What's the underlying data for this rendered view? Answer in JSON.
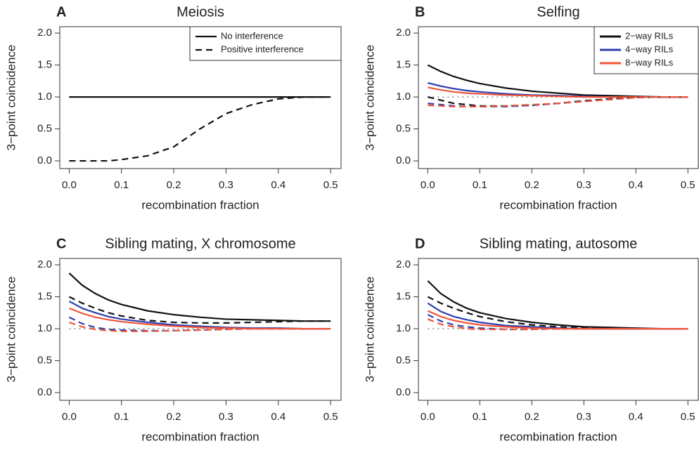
{
  "chart_data": [
    {
      "type": "line",
      "label": "A",
      "title": "Meiosis",
      "x_label": "recombination fraction",
      "y_label": "3−point coincidence",
      "x": [
        0,
        0.025,
        0.05,
        0.075,
        0.1,
        0.15,
        0.2,
        0.25,
        0.3,
        0.35,
        0.4,
        0.45,
        0.5
      ],
      "series": [
        {
          "name": "No interference",
          "color": "#111111",
          "dash": "solid",
          "values": [
            1,
            1,
            1,
            1,
            1,
            1,
            1,
            1,
            1,
            1,
            1,
            1,
            1
          ]
        },
        {
          "name": "Positive interference",
          "color": "#111111",
          "dash": "dashed",
          "values": [
            0,
            0,
            0,
            0,
            0.02,
            0.08,
            0.22,
            0.5,
            0.74,
            0.88,
            0.97,
            1,
            1
          ]
        }
      ],
      "xlim": [
        -0.018,
        0.52
      ],
      "ylim": [
        -0.12,
        2.1
      ],
      "xticks": [
        {
          "value": 0,
          "label": "0.0"
        },
        0.1,
        0.2,
        0.3,
        0.4,
        0.5
      ],
      "yticks": [
        {
          "value": 0,
          "label": "0.0"
        },
        0.5,
        {
          "value": 1,
          "label": "1.0"
        },
        1.5,
        {
          "value": 2,
          "label": "2.0"
        }
      ],
      "legend": "top-right"
    },
    {
      "type": "line",
      "label": "B",
      "title": "Selfing",
      "x_label": "recombination fraction",
      "y_label": "3−point coincidence",
      "x": [
        0,
        0.025,
        0.05,
        0.075,
        0.1,
        0.15,
        0.2,
        0.25,
        0.3,
        0.35,
        0.4,
        0.45,
        0.5
      ],
      "series": [
        {
          "name": "2−way RILs",
          "color": "#111111",
          "dash": "solid",
          "values": [
            1.5,
            1.4,
            1.32,
            1.26,
            1.21,
            1.14,
            1.09,
            1.06,
            1.03,
            1.02,
            1.01,
            1,
            1
          ]
        },
        {
          "name": "4−way RILs",
          "color": "#2b3fae",
          "dash": "solid",
          "values": [
            1.22,
            1.17,
            1.13,
            1.1,
            1.08,
            1.05,
            1.03,
            1.02,
            1.01,
            1,
            1,
            1,
            1
          ]
        },
        {
          "name": "8−way RILs",
          "color": "#f0553a",
          "dash": "solid",
          "values": [
            1.15,
            1.11,
            1.08,
            1.06,
            1.05,
            1.03,
            1.02,
            1.01,
            1,
            1,
            1,
            1,
            1
          ]
        },
        {
          "color": "#111111",
          "dash": "dashed",
          "values": [
            1,
            0.95,
            0.9,
            0.88,
            0.86,
            0.86,
            0.87,
            0.9,
            0.94,
            0.97,
            0.99,
            1,
            1
          ]
        },
        {
          "color": "#2b3fae",
          "dash": "dashed",
          "values": [
            0.9,
            0.88,
            0.86,
            0.85,
            0.85,
            0.85,
            0.87,
            0.9,
            0.93,
            0.96,
            0.99,
            1,
            1
          ]
        },
        {
          "color": "#f0553a",
          "dash": "dashed",
          "values": [
            0.87,
            0.86,
            0.85,
            0.85,
            0.85,
            0.86,
            0.88,
            0.9,
            0.93,
            0.96,
            0.99,
            1,
            1
          ]
        }
      ],
      "xlim": [
        -0.018,
        0.52
      ],
      "ylim": [
        -0.12,
        2.1
      ],
      "xticks": [
        {
          "value": 0,
          "label": "0.0"
        },
        0.1,
        0.2,
        0.3,
        0.4,
        0.5
      ],
      "yticks": [
        {
          "value": 0,
          "label": "0.0"
        },
        0.5,
        {
          "value": 1,
          "label": "1.0"
        },
        1.5,
        {
          "value": 2,
          "label": "2.0"
        }
      ],
      "legend": "top-right",
      "reference_line": 1
    },
    {
      "type": "line",
      "label": "C",
      "title": "Sibling mating, X chromosome",
      "x_label": "recombination fraction",
      "y_label": "3−point coincidence",
      "x": [
        0,
        0.025,
        0.05,
        0.075,
        0.1,
        0.15,
        0.2,
        0.25,
        0.3,
        0.35,
        0.4,
        0.45,
        0.5
      ],
      "series": [
        {
          "color": "#111111",
          "dash": "solid",
          "values": [
            1.87,
            1.68,
            1.55,
            1.45,
            1.38,
            1.28,
            1.22,
            1.18,
            1.15,
            1.14,
            1.13,
            1.12,
            1.12
          ]
        },
        {
          "color": "#111111",
          "dash": "dashed",
          "values": [
            1.5,
            1.4,
            1.32,
            1.25,
            1.2,
            1.13,
            1.1,
            1.09,
            1.09,
            1.1,
            1.11,
            1.12,
            1.12
          ]
        },
        {
          "color": "#2b3fae",
          "dash": "solid",
          "values": [
            1.43,
            1.32,
            1.25,
            1.19,
            1.15,
            1.1,
            1.06,
            1.04,
            1.02,
            1.01,
            1.01,
            1,
            1
          ]
        },
        {
          "color": "#2b3fae",
          "dash": "dashed",
          "values": [
            1.18,
            1.08,
            1.02,
            0.99,
            0.98,
            0.97,
            0.97,
            0.98,
            0.99,
            1,
            1,
            1,
            1
          ]
        },
        {
          "color": "#f0553a",
          "dash": "solid",
          "values": [
            1.32,
            1.24,
            1.18,
            1.14,
            1.11,
            1.07,
            1.04,
            1.02,
            1.01,
            1,
            1,
            1,
            1
          ]
        },
        {
          "color": "#f0553a",
          "dash": "dashed",
          "values": [
            1.1,
            1.03,
            0.99,
            0.97,
            0.96,
            0.96,
            0.97,
            0.98,
            0.99,
            1,
            1,
            1,
            1
          ]
        }
      ],
      "xlim": [
        -0.018,
        0.52
      ],
      "ylim": [
        -0.12,
        2.1
      ],
      "xticks": [
        {
          "value": 0,
          "label": "0.0"
        },
        0.1,
        0.2,
        0.3,
        0.4,
        0.5
      ],
      "yticks": [
        {
          "value": 0,
          "label": "0.0"
        },
        0.5,
        {
          "value": 1,
          "label": "1.0"
        },
        1.5,
        {
          "value": 2,
          "label": "2.0"
        }
      ],
      "reference_line": 1
    },
    {
      "type": "line",
      "label": "D",
      "title": "Sibling mating, autosome",
      "x_label": "recombination fraction",
      "y_label": "3−point coincidence",
      "x": [
        0,
        0.025,
        0.05,
        0.075,
        0.1,
        0.15,
        0.2,
        0.25,
        0.3,
        0.35,
        0.4,
        0.45,
        0.5
      ],
      "series": [
        {
          "color": "#111111",
          "dash": "solid",
          "values": [
            1.75,
            1.55,
            1.42,
            1.32,
            1.25,
            1.16,
            1.1,
            1.06,
            1.03,
            1.02,
            1.01,
            1,
            1
          ]
        },
        {
          "color": "#111111",
          "dash": "dashed",
          "values": [
            1.5,
            1.4,
            1.32,
            1.25,
            1.19,
            1.11,
            1.06,
            1.03,
            1.01,
            1,
            1,
            1,
            1
          ]
        },
        {
          "color": "#2b3fae",
          "dash": "solid",
          "values": [
            1.4,
            1.27,
            1.19,
            1.14,
            1.1,
            1.05,
            1.03,
            1.01,
            1,
            1,
            1,
            1,
            1
          ]
        },
        {
          "color": "#2b3fae",
          "dash": "dashed",
          "values": [
            1.22,
            1.12,
            1.06,
            1.03,
            1.01,
            0.99,
            0.99,
            1,
            1,
            1,
            1,
            1,
            1
          ]
        },
        {
          "color": "#f0553a",
          "dash": "solid",
          "values": [
            1.28,
            1.19,
            1.13,
            1.09,
            1.06,
            1.03,
            1.01,
            1,
            1,
            1,
            1,
            1,
            1
          ]
        },
        {
          "color": "#f0553a",
          "dash": "dashed",
          "values": [
            1.15,
            1.07,
            1.03,
            1,
            0.99,
            0.99,
            0.99,
            1,
            1,
            1,
            1,
            1,
            1
          ]
        }
      ],
      "xlim": [
        -0.018,
        0.52
      ],
      "ylim": [
        -0.12,
        2.1
      ],
      "xticks": [
        {
          "value": 0,
          "label": "0.0"
        },
        0.1,
        0.2,
        0.3,
        0.4,
        0.5
      ],
      "yticks": [
        {
          "value": 0,
          "label": "0.0"
        },
        0.5,
        {
          "value": 1,
          "label": "1.0"
        },
        1.5,
        {
          "value": 2,
          "label": "2.0"
        }
      ],
      "reference_line": 1
    }
  ]
}
